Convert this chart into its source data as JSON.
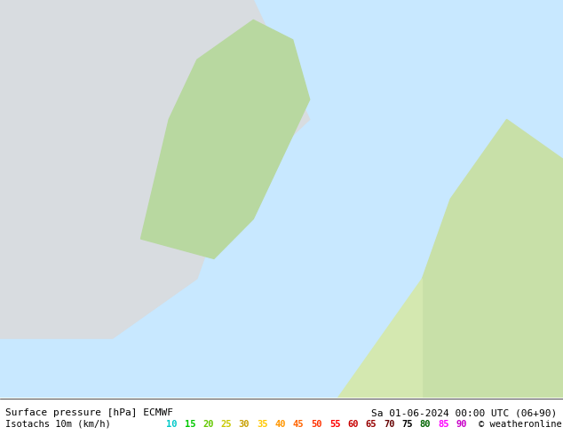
{
  "title_left": "Surface pressure [hPa] ECMWF",
  "title_right": "Sa 01-06-2024 00:00 UTC (06+90)",
  "legend_label": "Isotachs 10m (km/h)",
  "copyright": "© weatheronline.co.uk",
  "isotach_values": [
    10,
    15,
    20,
    25,
    30,
    35,
    40,
    45,
    50,
    55,
    60,
    65,
    70,
    75,
    80,
    85,
    90
  ],
  "isotach_colors": [
    "#c8c8ff",
    "#9696ff",
    "#6464ff",
    "#3232ff",
    "#00c800",
    "#00ff00",
    "#c8ff00",
    "#ffff00",
    "#ffc800",
    "#ff9600",
    "#ff6400",
    "#ff3200",
    "#ff0000",
    "#c80000",
    "#960000",
    "#ff00ff",
    "#c800c8"
  ],
  "bg_color": "#ffffff",
  "bottom_bar_color": "#e8e8e8",
  "fig_width": 6.34,
  "fig_height": 4.9,
  "map_bg_color": "#d4ecd4",
  "sea_color": "#c8e8ff",
  "label_fontsize": 7.5,
  "title_fontsize": 8
}
